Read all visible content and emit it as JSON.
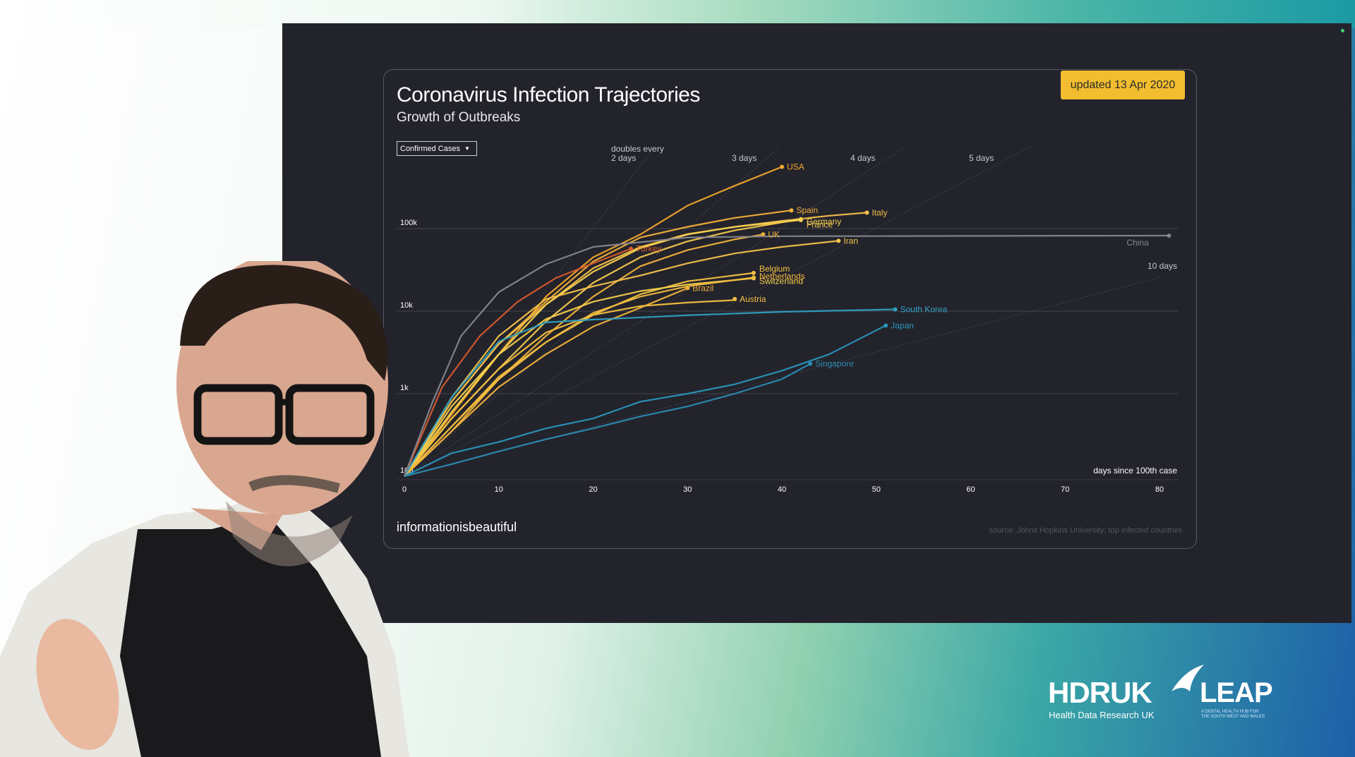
{
  "chart_data": {
    "type": "line",
    "title": "Coronavirus Infection Trajectories",
    "subtitle": "Growth of Outbreaks",
    "badge": "updated 13 Apr 2020",
    "metric_selector": "Confirmed Cases",
    "xlabel": "days since 100th case",
    "ylabel": "",
    "xlim": [
      0,
      80
    ],
    "ylim": [
      100,
      1000000
    ],
    "y_scale": "log",
    "x_ticks": [
      "0",
      "10",
      "20",
      "30",
      "40",
      "50",
      "60",
      "70",
      "80"
    ],
    "y_ticks": [
      "100",
      "1k",
      "10k",
      "100k"
    ],
    "doubling_labels": [
      {
        "label": "doubles every",
        "days": 2
      },
      {
        "label": "2 days",
        "days": 2
      },
      {
        "label": "3 days",
        "days": 3
      },
      {
        "label": "4 days",
        "days": 4
      },
      {
        "label": "5 days",
        "days": 5
      },
      {
        "label": "10 days",
        "days": 10
      }
    ],
    "series": [
      {
        "name": "USA",
        "color": "#f0a52a",
        "x": [
          0,
          5,
          10,
          15,
          20,
          25,
          30,
          35,
          40
        ],
        "y": [
          100,
          560,
          3000,
          15000,
          45000,
          85000,
          190000,
          330000,
          560000
        ]
      },
      {
        "name": "Spain",
        "color": "#f3b13a",
        "x": [
          0,
          5,
          10,
          15,
          20,
          25,
          30,
          35,
          41
        ],
        "y": [
          100,
          800,
          4000,
          13000,
          40000,
          78000,
          105000,
          135000,
          166000
        ]
      },
      {
        "name": "Italy",
        "color": "#f4c04a",
        "x": [
          0,
          5,
          10,
          15,
          20,
          25,
          30,
          35,
          40,
          45,
          49
        ],
        "y": [
          100,
          800,
          4000,
          12000,
          33000,
          60000,
          86000,
          105000,
          124000,
          143000,
          156000
        ]
      },
      {
        "name": "France",
        "color": "#f5c94e",
        "x": [
          0,
          5,
          10,
          15,
          20,
          25,
          30,
          35,
          42
        ],
        "y": [
          100,
          500,
          2000,
          7500,
          22000,
          45000,
          70000,
          95000,
          130000
        ]
      },
      {
        "name": "Germany",
        "color": "#f7d24f",
        "x": [
          0,
          5,
          10,
          15,
          20,
          25,
          30,
          35,
          42
        ],
        "y": [
          100,
          600,
          3000,
          12000,
          30000,
          58000,
          85000,
          105000,
          127000
        ]
      },
      {
        "name": "UK",
        "color": "#f0b43a",
        "x": [
          0,
          5,
          10,
          15,
          20,
          25,
          30,
          35,
          38
        ],
        "y": [
          100,
          350,
          1500,
          5000,
          15000,
          35000,
          55000,
          74000,
          85000
        ]
      },
      {
        "name": "Iran",
        "color": "#f2c24a",
        "x": [
          0,
          5,
          10,
          15,
          20,
          25,
          30,
          35,
          40,
          46
        ],
        "y": [
          100,
          900,
          5000,
          14000,
          20000,
          27000,
          38000,
          50000,
          60000,
          71000
        ]
      },
      {
        "name": "Turkey",
        "color": "#d75a2d",
        "x": [
          0,
          4,
          8,
          12,
          16,
          20,
          24
        ],
        "y": [
          100,
          1200,
          5000,
          13000,
          25000,
          38000,
          57000
        ]
      },
      {
        "name": "Belgium",
        "color": "#f4c442",
        "x": [
          0,
          5,
          10,
          15,
          20,
          25,
          30,
          37
        ],
        "y": [
          100,
          400,
          1500,
          4200,
          9000,
          16000,
          23000,
          29000
        ]
      },
      {
        "name": "Switzerland",
        "color": "#f6cf4c",
        "x": [
          0,
          5,
          10,
          15,
          20,
          25,
          30,
          37
        ],
        "y": [
          100,
          700,
          3000,
          8000,
          13000,
          17500,
          21000,
          25000
        ]
      },
      {
        "name": "Netherlands",
        "color": "#f1bb3e",
        "x": [
          0,
          5,
          10,
          15,
          20,
          25,
          30,
          37
        ],
        "y": [
          100,
          400,
          1600,
          4200,
          9500,
          15000,
          20000,
          25500
        ]
      },
      {
        "name": "Brazil",
        "color": "#f2b13a",
        "x": [
          0,
          5,
          10,
          15,
          20,
          25,
          30
        ],
        "y": [
          100,
          350,
          1200,
          3000,
          6500,
          11000,
          19000
        ]
      },
      {
        "name": "Austria",
        "color": "#f3c040",
        "x": [
          0,
          5,
          10,
          15,
          20,
          25,
          30,
          35,
          35
        ],
        "y": [
          100,
          500,
          2000,
          5500,
          9000,
          11500,
          12700,
          13600,
          14000
        ]
      },
      {
        "name": "South Korea",
        "color": "#2fa0c0",
        "x": [
          0,
          5,
          10,
          15,
          20,
          30,
          40,
          52
        ],
        "y": [
          100,
          900,
          4300,
          7300,
          7900,
          8900,
          9800,
          10500
        ]
      },
      {
        "name": "Japan",
        "color": "#2a96bc",
        "x": [
          0,
          5,
          10,
          15,
          20,
          25,
          30,
          35,
          40,
          45,
          51
        ],
        "y": [
          100,
          190,
          260,
          380,
          500,
          800,
          1000,
          1300,
          1900,
          3000,
          6700
        ]
      },
      {
        "name": "Singapore",
        "color": "#2a8cb2",
        "x": [
          0,
          5,
          10,
          15,
          20,
          25,
          30,
          35,
          40,
          43
        ],
        "y": [
          100,
          140,
          200,
          280,
          380,
          530,
          700,
          1000,
          1500,
          2300
        ]
      },
      {
        "name": "China",
        "color": "#86868f",
        "x": [
          0,
          3,
          6,
          10,
          15,
          20,
          30,
          40,
          50,
          60,
          70,
          80,
          81
        ],
        "y": [
          100,
          800,
          5000,
          17000,
          37000,
          60000,
          78000,
          80800,
          81000,
          81500,
          82000,
          82160,
          82200
        ]
      }
    ]
  },
  "footer": {
    "brand": "informationisbeautiful",
    "source": "source: Johns Hopkins University; top infected countries"
  },
  "logos": {
    "hdr_text": "HDRUK",
    "hdr_sub": "Health Data Research UK",
    "leap_text": "LEAP",
    "leap_sub": "A DIGITAL HEALTH HUB FOR THE SOUTH WEST AND WALES"
  }
}
